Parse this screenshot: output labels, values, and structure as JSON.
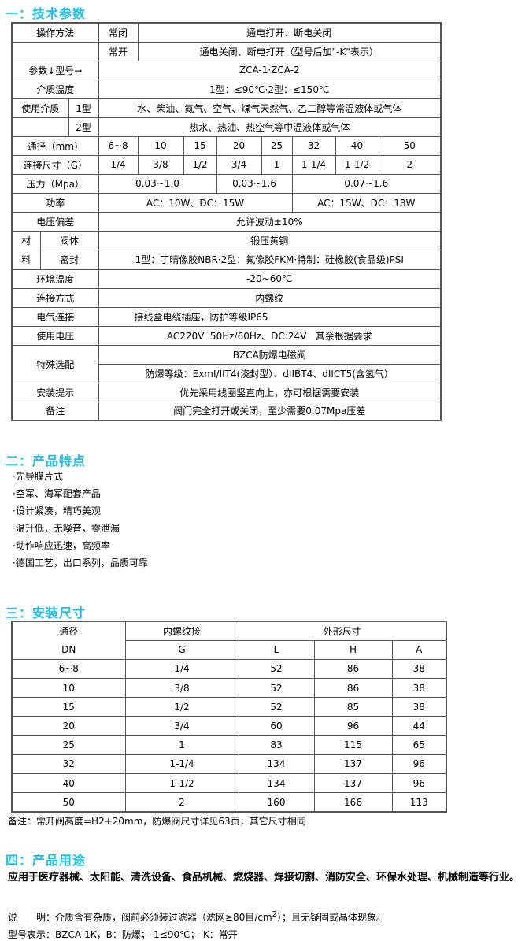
{
  "sections": [
    "一：技术参数",
    "二：产品特点",
    "三：安装尺寸",
    "四：产品用途"
  ],
  "spec": {
    "op_label": "操作方法",
    "nc": "常闭",
    "nc_val": "通电打开、断电关闭",
    "no": "常开",
    "no_val": "通电关闭、断电打开（型号后加\"-K\"表示）",
    "param_label": "参数↓型号→",
    "model": "ZCA-1·ZCA-2",
    "temp_label": "介质温度",
    "temp_val": "1型：≤90℃·2型：≤150℃",
    "media_label": "使用介质",
    "t1": "1型",
    "t1_val": "水、柴油、氮气、空气、煤气天然气、乙二醇等常温液体或气体",
    "t2": "2型",
    "t2_val": "热水、热油、热空气等中温液体或气体",
    "dn_label": "通径（mm）",
    "dn": [
      "6~8",
      "10",
      "15",
      "20",
      "25",
      "32",
      "40",
      "50"
    ],
    "g_label": "连接尺寸（G）",
    "g": [
      "1/4",
      "3/8",
      "1/2",
      "3/4",
      "1",
      "1-1/4",
      "1-1/2",
      "2"
    ],
    "p_label": "压力（Mpa）",
    "p": [
      "0.03~1.0",
      "0.03~1.6",
      "0.07~1.6"
    ],
    "pw_label": "功率",
    "pw": [
      "AC：10W、DC：15W",
      "AC：15W、DC：18W"
    ],
    "vd_label": "电压偏差",
    "vd_val": "允许波动±10%",
    "mat1": "材",
    "mat2": "料",
    "body_label": "阀体",
    "body_val": "锻压黄铜",
    "seal_label": "密封",
    "seal_val": "1型：丁晴像胶NBR·2型：氟像胶FKM·特制：硅橡胶(食品级)PSI",
    "env_label": "环境温度",
    "env_val": "-20~60℃",
    "conn_label": "连接方式",
    "conn_val": "内螺纹",
    "elec_label": "电气连接",
    "elec_val": "接线盒电缆插座，防护等级IP65",
    "volt_label": "使用电压",
    "volt_val": "AC220V  50Hz/60Hz、DC:24V   其余根据要求",
    "spec_label": "特殊选配",
    "spec_val1": "BZCA防爆电磁阀",
    "spec_val2": "防爆等级：ExmI/IIT4(浇封型）、dIIBT4、dIICT5(含氢气）",
    "inst_label": "安装提示",
    "inst_val": "优先采用线圈竖直向上，亦可根据需要安装",
    "note_label": "备注",
    "note_val": "阀门完全打开或关闭，至少需要0.07Mpa压差"
  },
  "features": [
    "·先导膜片式",
    "·空军、海军配套产品",
    "·设计紧凑，精巧美观",
    "·温升低，无噪音，零泄漏",
    "·动作响应迅速，高频率",
    "·德国工艺，出口系列，品质可靠"
  ],
  "dims": {
    "h_dn1": "通径",
    "h_dn2": "DN",
    "h_g1": "内螺纹接",
    "h_g2": "G",
    "h_out": "外形尺寸",
    "h_l": "L",
    "h_h": "H",
    "h_a": "A",
    "rows": [
      [
        "6~8",
        "1/4",
        "52",
        "86",
        "38"
      ],
      [
        "10",
        "3/8",
        "52",
        "86",
        "38"
      ],
      [
        "15",
        "1/2",
        "52",
        "85",
        "38"
      ],
      [
        "20",
        "3/4",
        "60",
        "96",
        "44"
      ],
      [
        "25",
        "1",
        "83",
        "115",
        "65"
      ],
      [
        "32",
        "1-1/4",
        "134",
        "137",
        "96"
      ],
      [
        "40",
        "1-1/2",
        "134",
        "137",
        "96"
      ],
      [
        "50",
        "2",
        "160",
        "166",
        "113"
      ]
    ],
    "note": "备注：常开阀高度=H2+20mm，防爆阀尺寸详见63页，其它尺寸相同"
  },
  "usage": {
    "apps": "应用于医疗器械、太阳能、清洗设备、食品机械、燃烧器、焊接切割、消防安全、环保水处理、机械制造等行业。",
    "desc_pre": "说　　明：介质含有杂质，阀前必须装过滤器（滤网≥80目/cm",
    "desc_sup": "2",
    "desc_post": "）；且无疑固或晶体现象。",
    "model": "型号表示：BZCA-1K，B：防爆；-1≤90℃；-K：常开"
  }
}
